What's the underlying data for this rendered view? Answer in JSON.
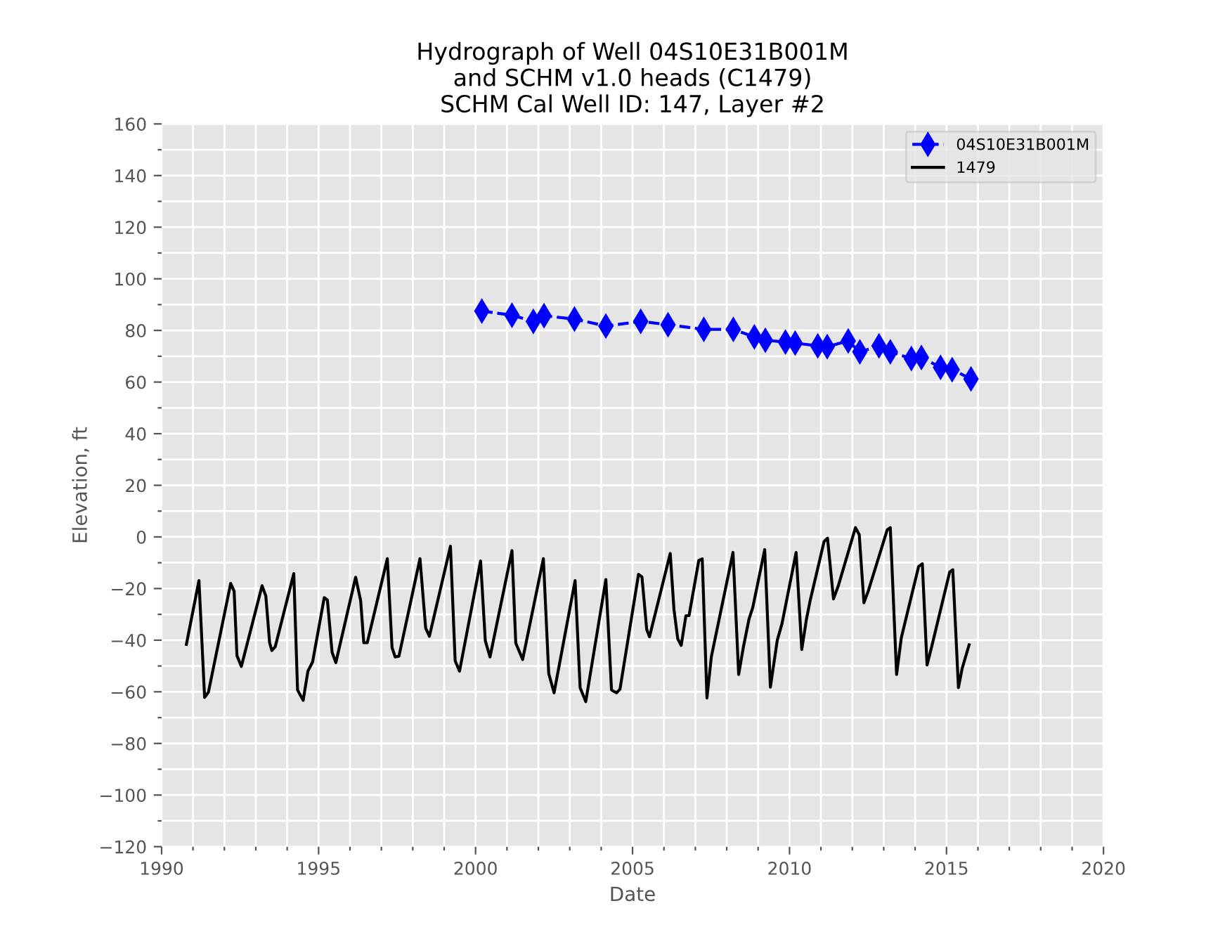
{
  "chart_data": {
    "type": "line",
    "title": "Hydrograph of Well 04S10E31B001M\nand SCHM v1.0 heads (C1479)\nSCHM Cal Well ID: 147, Layer #2",
    "xlabel": "Date",
    "ylabel": "Elevation, ft",
    "xlim": [
      1990,
      2020
    ],
    "xticks": [
      1990,
      {
        "value": 1991,
        "label": null
      },
      {
        "value": 1992,
        "label": null
      },
      {
        "value": 1993,
        "label": null
      },
      {
        "value": 1994,
        "label": null
      },
      1995,
      {
        "value": 1996,
        "label": null
      },
      {
        "value": 1997,
        "label": null
      },
      {
        "value": 1998,
        "label": null
      },
      {
        "value": 1999,
        "label": null
      },
      2000,
      {
        "value": 2001,
        "label": null
      },
      {
        "value": 2002,
        "label": null
      },
      {
        "value": 2003,
        "label": null
      },
      {
        "value": 2004,
        "label": null
      },
      2005,
      {
        "value": 2006,
        "label": null
      },
      {
        "value": 2007,
        "label": null
      },
      {
        "value": 2008,
        "label": null
      },
      {
        "value": 2009,
        "label": null
      },
      2010,
      {
        "value": 2011,
        "label": null
      },
      {
        "value": 2012,
        "label": null
      },
      {
        "value": 2013,
        "label": null
      },
      {
        "value": 2014,
        "label": null
      },
      2015,
      {
        "value": 2016,
        "label": null
      },
      {
        "value": 2017,
        "label": null
      },
      {
        "value": 2018,
        "label": null
      },
      {
        "value": 2019,
        "label": null
      },
      2020
    ],
    "ylim": [
      -120,
      160
    ],
    "yticks": [
      {
        "value": -120,
        "label": "−120"
      },
      {
        "value": -110,
        "label": null
      },
      {
        "value": -100,
        "label": "−100"
      },
      {
        "value": -90,
        "label": null
      },
      {
        "value": -80,
        "label": "−80"
      },
      {
        "value": -70,
        "label": null
      },
      {
        "value": -60,
        "label": "−60"
      },
      {
        "value": -50,
        "label": null
      },
      {
        "value": -40,
        "label": "−40"
      },
      {
        "value": -30,
        "label": null
      },
      {
        "value": -20,
        "label": "−20"
      },
      {
        "value": -10,
        "label": null
      },
      0,
      {
        "value": 10,
        "label": null
      },
      20,
      {
        "value": 30,
        "label": null
      },
      40,
      {
        "value": 50,
        "label": null
      },
      60,
      {
        "value": 70,
        "label": null
      },
      80,
      {
        "value": 90,
        "label": null
      },
      100,
      {
        "value": 110,
        "label": null
      },
      120,
      {
        "value": 130,
        "label": null
      },
      140,
      {
        "value": 150,
        "label": null
      },
      160
    ],
    "grid": true,
    "legend": "top right",
    "series": [
      {
        "name": "04S10E31B001M",
        "color": "#0000ff",
        "marker": "diamond",
        "line_style": "dashed",
        "x": [
          2000.2,
          2001.16,
          2001.84,
          2002.18,
          2003.15,
          2004.15,
          2005.26,
          2006.13,
          2007.27,
          2008.21,
          2008.88,
          2009.23,
          2009.87,
          2010.18,
          2010.9,
          2011.2,
          2011.87,
          2012.24,
          2012.85,
          2013.21,
          2013.88,
          2014.2,
          2014.81,
          2015.18,
          2015.78
        ],
        "values": [
          87.5,
          85.9,
          83.5,
          85.7,
          84.4,
          81.7,
          83.5,
          82.2,
          80.4,
          80.4,
          77.5,
          76.2,
          75.5,
          75.1,
          74.0,
          73.7,
          75.9,
          71.7,
          74.0,
          71.7,
          69.1,
          69.5,
          65.7,
          64.8,
          61.2
        ]
      },
      {
        "name": "1479",
        "color": "#000000",
        "marker": "none",
        "line_style": "solid",
        "x": [
          1990.79,
          1991.19,
          1991.37,
          1991.49,
          1992.2,
          1992.31,
          1992.4,
          1992.54,
          1993.2,
          1993.32,
          1993.44,
          1993.51,
          1993.62,
          1994.21,
          1994.33,
          1994.51,
          1994.66,
          1994.81,
          1995.18,
          1995.28,
          1995.43,
          1995.55,
          1996.18,
          1996.34,
          1996.44,
          1996.55,
          1997.19,
          1997.34,
          1997.44,
          1997.56,
          1998.23,
          1998.41,
          1998.53,
          1999.2,
          1999.35,
          1999.49,
          2000.16,
          2000.31,
          2000.46,
          2001.16,
          2001.28,
          2001.5,
          2002.16,
          2002.33,
          2002.5,
          2003.17,
          2003.33,
          2003.51,
          2004.15,
          2004.33,
          2004.49,
          2004.6,
          2005.19,
          2005.3,
          2005.45,
          2005.54,
          2006.2,
          2006.32,
          2006.44,
          2006.55,
          2006.7,
          2006.8,
          2007.11,
          2007.22,
          2007.37,
          2007.51,
          2008.2,
          2008.38,
          2008.53,
          2008.71,
          2008.83,
          2009.21,
          2009.39,
          2009.61,
          2009.76,
          2010.21,
          2010.39,
          2010.54,
          2010.66,
          2011.1,
          2011.21,
          2011.4,
          2011.55,
          2012.1,
          2012.22,
          2012.37,
          2012.51,
          2013.11,
          2013.21,
          2013.41,
          2013.56,
          2014.11,
          2014.23,
          2014.38,
          2014.53,
          2015.1,
          2015.2,
          2015.38,
          2015.5,
          2015.72
        ],
        "values": [
          -41.6,
          -16.9,
          -62.2,
          -60.2,
          -18,
          -21,
          -46,
          -50.2,
          -18.9,
          -22.9,
          -41,
          -44,
          -42.5,
          -14.2,
          -59.3,
          -63.3,
          -52,
          -48.4,
          -23.5,
          -24.4,
          -44.7,
          -48.7,
          -15.6,
          -24.7,
          -41,
          -41,
          -8.4,
          -42.9,
          -46.5,
          -46.2,
          -8.4,
          -35.3,
          -38.5,
          -3.6,
          -48,
          -52,
          -9.3,
          -40.2,
          -46.5,
          -5.3,
          -41.1,
          -47.5,
          -8.4,
          -52.9,
          -60.4,
          -16.9,
          -58.4,
          -63.8,
          -16.5,
          -59.3,
          -60.4,
          -59,
          -14.5,
          -15.5,
          -35.8,
          -38.7,
          -6.4,
          -28.2,
          -39.5,
          -42,
          -30.5,
          -30.5,
          -9.1,
          -8.5,
          -62.4,
          -46.4,
          -6,
          -53.3,
          -42.7,
          -31.8,
          -27.3,
          -4.9,
          -58.2,
          -40,
          -33.6,
          -6,
          -43.6,
          -31.8,
          -24.5,
          -1.8,
          -0.5,
          -24,
          -19.1,
          3.6,
          0.9,
          -25.5,
          -20.9,
          2.7,
          3.6,
          -53.3,
          -39.1,
          -11.5,
          -10.4,
          -49.6,
          -42.4,
          -13.6,
          -12.7,
          -58.4,
          -50.9,
          -41.8
        ]
      }
    ]
  }
}
